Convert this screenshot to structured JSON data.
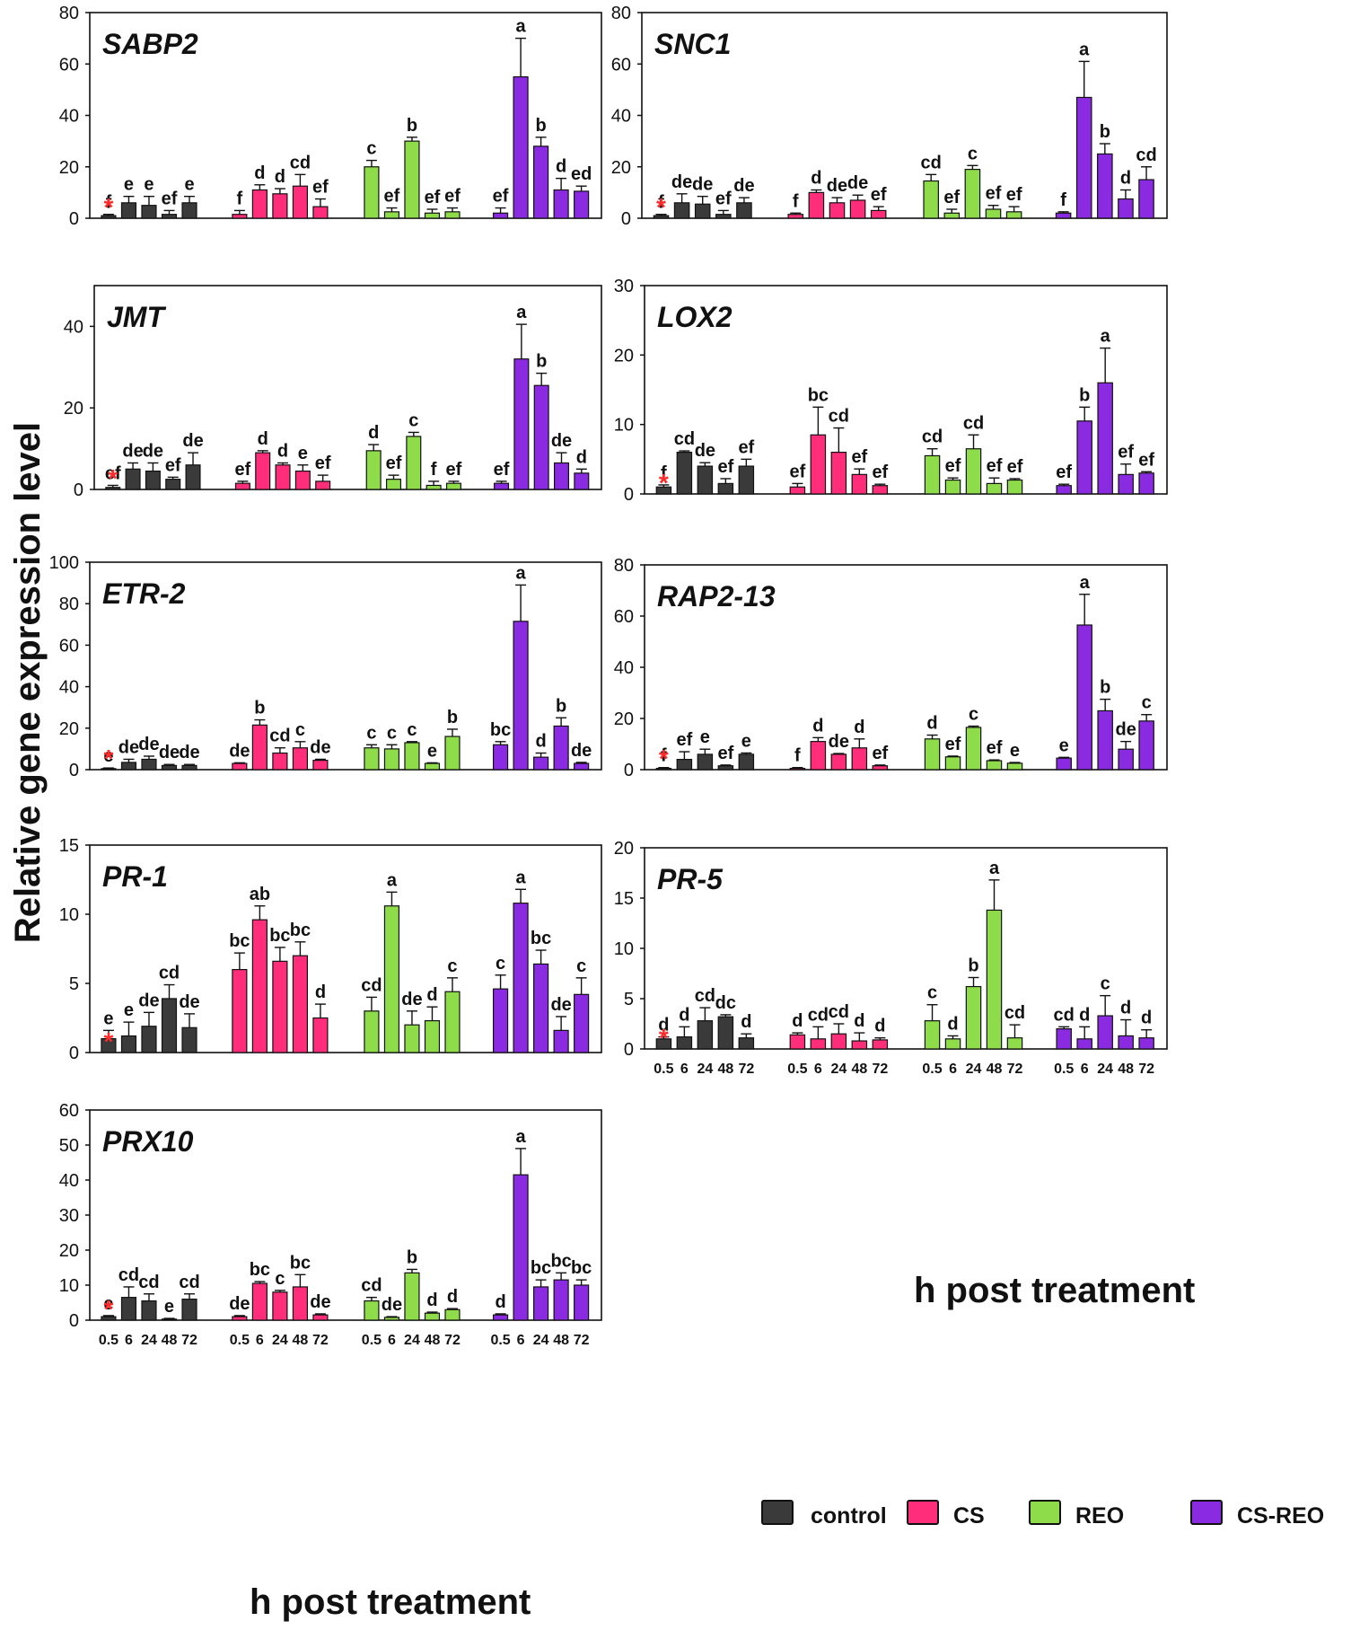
{
  "figure": {
    "y_axis_label": "Relative gene expression level",
    "x_axis_label": "h post treatment"
  },
  "legend": [
    {
      "label": "control",
      "color": "#3a3a3a"
    },
    {
      "label": "CS",
      "color": "#ff2d7a"
    },
    {
      "label": "REO",
      "color": "#8fdc4a"
    },
    {
      "label": "CS-REO",
      "color": "#8a2be2"
    }
  ],
  "group_colors": [
    "#3a3a3a",
    "#ff2d7a",
    "#8fdc4a",
    "#8a2be2"
  ],
  "chart_data": [
    {
      "type": "bar",
      "title": "SABP2",
      "ylim": [
        0,
        80
      ],
      "yticks": [
        0,
        20,
        40,
        60,
        80
      ],
      "xticklabels": [],
      "groups": [
        "control",
        "CS",
        "REO",
        "CS-REO"
      ],
      "values": [
        [
          1,
          6,
          5,
          1.5,
          6
        ],
        [
          1.5,
          11,
          9.5,
          12.5,
          4.5
        ],
        [
          20,
          2.5,
          30,
          2,
          2.5
        ],
        [
          2,
          55,
          28,
          11,
          10.5
        ]
      ],
      "errors": [
        [
          0.5,
          2.5,
          3.5,
          1.5,
          2.5
        ],
        [
          1.5,
          2,
          2,
          4.5,
          3
        ],
        [
          2.5,
          1.5,
          1.5,
          1.5,
          1.5
        ],
        [
          2,
          15,
          3.5,
          4.5,
          2
        ]
      ],
      "letters": [
        [
          "f",
          "e",
          "e",
          "ef",
          "e"
        ],
        [
          "f",
          "d",
          "d",
          "cd",
          "ef"
        ],
        [
          "c",
          "ef",
          "b",
          "ef",
          "ef"
        ],
        [
          "ef",
          "a",
          "b",
          "d",
          "ed"
        ]
      ],
      "asterisk": "*"
    },
    {
      "type": "bar",
      "title": "SNC1",
      "ylim": [
        0,
        80
      ],
      "yticks": [
        0,
        20,
        40,
        60,
        80
      ],
      "xticklabels": [],
      "groups": [
        "control",
        "CS",
        "REO",
        "CS-REO"
      ],
      "values": [
        [
          1,
          6,
          5.5,
          1.5,
          6
        ],
        [
          1.5,
          10,
          6,
          7,
          3
        ],
        [
          14.5,
          2,
          19,
          3.5,
          2.5
        ],
        [
          2,
          47,
          25,
          7.5,
          15
        ]
      ],
      "errors": [
        [
          0.5,
          3.5,
          3,
          1.5,
          2
        ],
        [
          0.5,
          1,
          2,
          2,
          1.5
        ],
        [
          2.5,
          1.5,
          1.5,
          1.5,
          2
        ],
        [
          0.5,
          14,
          4,
          3.5,
          5
        ]
      ],
      "letters": [
        [
          "f",
          "de",
          "de",
          "ef",
          "de"
        ],
        [
          "f",
          "d",
          "de",
          "de",
          "ef"
        ],
        [
          "cd",
          "ef",
          "c",
          "ef",
          "ef"
        ],
        [
          "f",
          "a",
          "b",
          "d",
          "cd"
        ]
      ],
      "asterisk": "*"
    },
    {
      "type": "bar",
      "title": "JMT",
      "ylim": [
        0,
        50
      ],
      "yticks": [
        0,
        20,
        40
      ],
      "xticklabels": [],
      "groups": [
        "control",
        "CS",
        "REO",
        "CS-REO"
      ],
      "values": [
        [
          0.5,
          5,
          4.5,
          2.5,
          6
        ],
        [
          1.5,
          9,
          6,
          4.5,
          2
        ],
        [
          9.5,
          2.5,
          13,
          1,
          1.5
        ],
        [
          1.5,
          32,
          25.5,
          6.5,
          4
        ]
      ],
      "errors": [
        [
          0.5,
          1.5,
          2,
          0.5,
          3
        ],
        [
          0.5,
          0.5,
          0.5,
          1.5,
          1.5
        ],
        [
          1.5,
          1,
          1,
          1,
          0.5
        ],
        [
          0.5,
          8.5,
          3,
          2.5,
          1
        ]
      ],
      "letters": [
        [
          "ef",
          "de",
          "de",
          "ef",
          "de"
        ],
        [
          "ef",
          "d",
          "d",
          "e",
          "ef"
        ],
        [
          "d",
          "ef",
          "c",
          "f",
          "ef"
        ],
        [
          "ef",
          "a",
          "b",
          "de",
          "d"
        ]
      ],
      "asterisk": "*"
    },
    {
      "type": "bar",
      "title": "LOX2",
      "ylim": [
        0,
        30
      ],
      "yticks": [
        0,
        10,
        20,
        30
      ],
      "xticklabels": [],
      "groups": [
        "control",
        "CS",
        "REO",
        "CS-REO"
      ],
      "values": [
        [
          1,
          6,
          4,
          1.5,
          4
        ],
        [
          1,
          8.5,
          6,
          2.8,
          1.2
        ],
        [
          5.5,
          2,
          6.5,
          1.5,
          2
        ],
        [
          1.2,
          10.5,
          16,
          2.8,
          3
        ]
      ],
      "errors": [
        [
          0.3,
          0.2,
          0.5,
          0.7,
          1
        ],
        [
          0.5,
          4,
          3.5,
          0.8,
          0.2
        ],
        [
          1,
          0.3,
          2,
          0.8,
          0.2
        ],
        [
          0.2,
          2,
          5,
          1.5,
          0.2
        ]
      ],
      "letters": [
        [
          "f",
          "cd",
          "de",
          "ef",
          "ef"
        ],
        [
          "ef",
          "bc",
          "cd",
          "ef",
          "ef"
        ],
        [
          "cd",
          "ef",
          "cd",
          "ef",
          "ef"
        ],
        [
          "ef",
          "b",
          "a",
          "ef",
          "ef"
        ]
      ],
      "asterisk": "*"
    },
    {
      "type": "bar",
      "title": "ETR-2",
      "ylim": [
        0,
        100
      ],
      "yticks": [
        0,
        20,
        40,
        60,
        80,
        100
      ],
      "xticklabels": [],
      "groups": [
        "control",
        "CS",
        "REO",
        "CS-REO"
      ],
      "values": [
        [
          0.5,
          3.5,
          5,
          2,
          2
        ],
        [
          3,
          21.5,
          8,
          10.5,
          4.5
        ],
        [
          10.5,
          10,
          13,
          3,
          16
        ],
        [
          12,
          71.5,
          6,
          21,
          3
        ]
      ],
      "errors": [
        [
          0.3,
          1.5,
          1.5,
          0.5,
          0.5
        ],
        [
          0.3,
          2.5,
          2.5,
          3,
          0.5
        ],
        [
          1.5,
          2,
          0.5,
          0.3,
          3.5
        ],
        [
          1.5,
          17.5,
          2,
          4,
          0.5
        ]
      ],
      "letters": [
        [
          "e",
          "de",
          "de",
          "de",
          "de"
        ],
        [
          "de",
          "b",
          "cd",
          "c",
          "de"
        ],
        [
          "c",
          "c",
          "c",
          "e",
          "b"
        ],
        [
          "bc",
          "a",
          "d",
          "b",
          "de"
        ]
      ],
      "asterisk": "*"
    },
    {
      "type": "bar",
      "title": "RAP2-13",
      "ylim": [
        0,
        80
      ],
      "yticks": [
        0,
        20,
        40,
        60,
        80
      ],
      "xticklabels": [],
      "groups": [
        "control",
        "CS",
        "REO",
        "CS-REO"
      ],
      "values": [
        [
          0.5,
          4,
          6,
          1.5,
          6
        ],
        [
          0.5,
          11,
          6,
          8.5,
          1.5
        ],
        [
          12,
          5,
          16.5,
          3.5,
          2.5
        ],
        [
          4.5,
          56.5,
          23,
          8,
          19
        ]
      ],
      "errors": [
        [
          0.3,
          3,
          2,
          0.3,
          0.5
        ],
        [
          0.3,
          1.5,
          0.3,
          3.5,
          0.3
        ],
        [
          1.5,
          0.3,
          0.5,
          0.3,
          0.3
        ],
        [
          0.3,
          12,
          4.5,
          3,
          2.5
        ]
      ],
      "letters": [
        [
          "f",
          "ef",
          "e",
          "ef",
          "e"
        ],
        [
          "f",
          "d",
          "de",
          "d",
          "ef"
        ],
        [
          "d",
          "ef",
          "c",
          "ef",
          "e"
        ],
        [
          "e",
          "a",
          "b",
          "de",
          "c"
        ]
      ],
      "asterisk": "*"
    },
    {
      "type": "bar",
      "title": "PR-1",
      "ylim": [
        0,
        15
      ],
      "yticks": [
        0,
        5,
        10,
        15
      ],
      "xticklabels": [],
      "groups": [
        "control",
        "CS",
        "REO",
        "CS-REO"
      ],
      "values": [
        [
          1,
          1.2,
          1.9,
          3.9,
          1.8
        ],
        [
          6,
          9.6,
          6.6,
          7,
          2.5
        ],
        [
          3,
          10.6,
          2,
          2.3,
          4.4
        ],
        [
          4.6,
          10.8,
          6.4,
          1.6,
          4.2
        ]
      ],
      "errors": [
        [
          0.6,
          1,
          1,
          1,
          1
        ],
        [
          1.2,
          1,
          1,
          1,
          1
        ],
        [
          1,
          1,
          1,
          1,
          1
        ],
        [
          1,
          1,
          1,
          1,
          1.2
        ]
      ],
      "letters": [
        [
          "e",
          "e",
          "de",
          "cd",
          "de"
        ],
        [
          "bc",
          "ab",
          "bc",
          "bc",
          "d"
        ],
        [
          "cd",
          "a",
          "de",
          "d",
          "c"
        ],
        [
          "c",
          "a",
          "bc",
          "de",
          "c"
        ]
      ],
      "asterisk": "*"
    },
    {
      "type": "bar",
      "title": "PR-5",
      "ylim": [
        0,
        20
      ],
      "yticks": [
        0,
        5,
        10,
        15,
        20
      ],
      "xticklabels": [
        "0.5",
        "6",
        "24",
        "48",
        "72"
      ],
      "groups": [
        "control",
        "CS",
        "REO",
        "CS-REO"
      ],
      "values": [
        [
          1,
          1.2,
          2.8,
          3.2,
          1.1
        ],
        [
          1.4,
          1,
          1.5,
          0.8,
          0.9
        ],
        [
          2.8,
          1,
          6.2,
          13.8,
          1.1
        ],
        [
          2,
          1,
          3.3,
          1.3,
          1.1
        ]
      ],
      "errors": [
        [
          0.2,
          1,
          1.3,
          0.2,
          0.4
        ],
        [
          0.2,
          1.2,
          1,
          0.8,
          0.2
        ],
        [
          1.6,
          0.3,
          0.9,
          3,
          1.3
        ],
        [
          0.2,
          1.2,
          2,
          1.6,
          0.8
        ]
      ],
      "letters": [
        [
          "d",
          "d",
          "cd",
          "dc",
          "d"
        ],
        [
          "d",
          "cd",
          "cd",
          "d",
          "d"
        ],
        [
          "c",
          "d",
          "b",
          "a",
          "cd"
        ],
        [
          "cd",
          "d",
          "c",
          "d",
          "d"
        ]
      ],
      "asterisk": "*"
    },
    {
      "type": "bar",
      "title": "PRX10",
      "ylim": [
        0,
        60
      ],
      "yticks": [
        0,
        10,
        20,
        30,
        40,
        50,
        60
      ],
      "xticklabels": [
        "0.5",
        "6",
        "24",
        "48",
        "72"
      ],
      "groups": [
        "control",
        "CS",
        "REO",
        "CS-REO"
      ],
      "values": [
        [
          1,
          6.5,
          5.5,
          0.3,
          6
        ],
        [
          1,
          10.5,
          8,
          9.5,
          1.5
        ],
        [
          5.5,
          0.8,
          13.5,
          2,
          3
        ],
        [
          1.5,
          41.5,
          9.5,
          11.5,
          10
        ]
      ],
      "errors": [
        [
          0.3,
          3,
          2,
          0.2,
          1.5
        ],
        [
          0.3,
          0.5,
          0.5,
          3.5,
          0.3
        ],
        [
          1,
          0.2,
          1,
          0.3,
          0.3
        ],
        [
          0.3,
          7.5,
          2,
          2,
          1.5
        ]
      ],
      "letters": [
        [
          "e",
          "cd",
          "cd",
          "e",
          "cd"
        ],
        [
          "de",
          "bc",
          "c",
          "bc",
          "de"
        ],
        [
          "cd",
          "de",
          "b",
          "d",
          "d"
        ],
        [
          "d",
          "a",
          "bc",
          "bc",
          "bc"
        ]
      ],
      "asterisk": "*"
    }
  ]
}
